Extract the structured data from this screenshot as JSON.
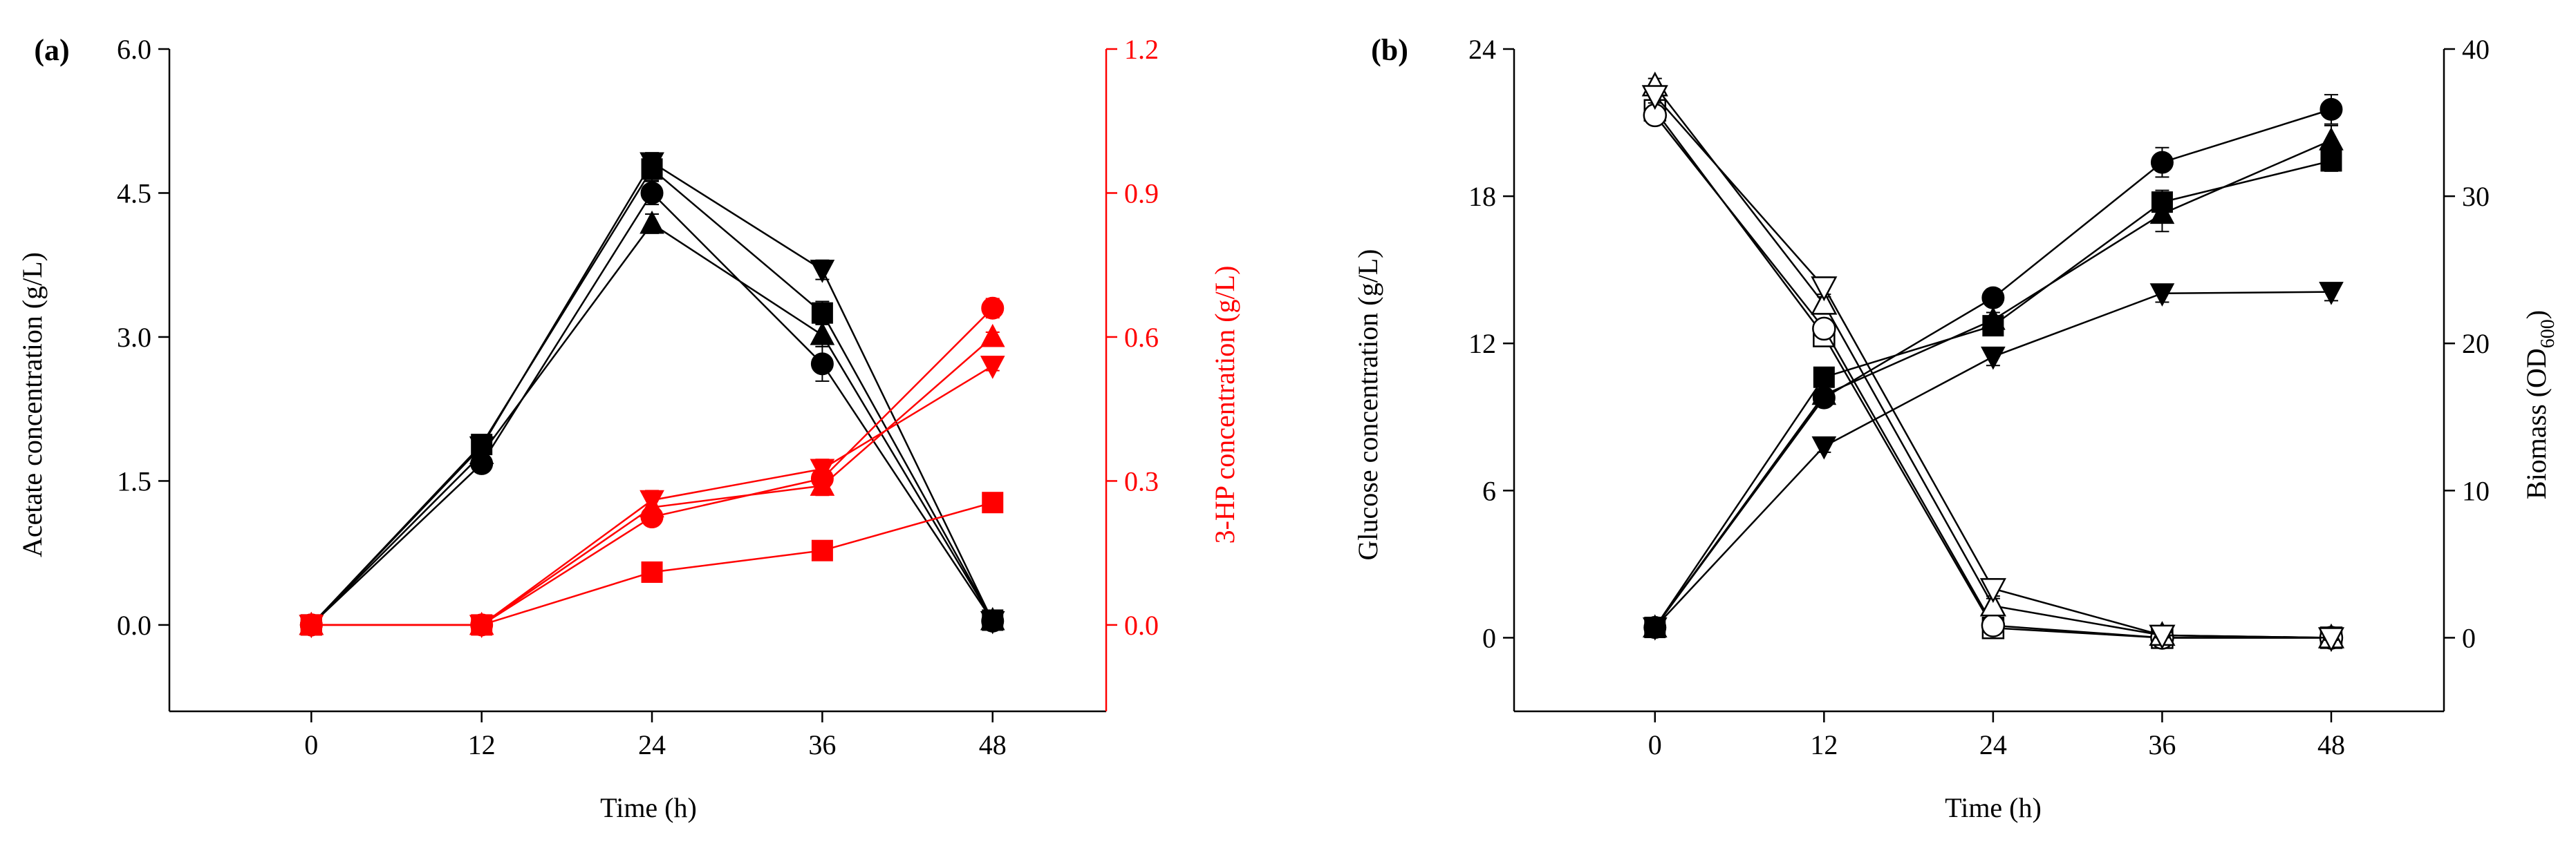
{
  "chart_data": [
    {
      "panel_label": "(a)",
      "type": "line",
      "x": [
        0,
        12,
        24,
        36,
        48
      ],
      "xlabel": "Time (h)",
      "xticks": [
        "0",
        "12",
        "24",
        "36",
        "48"
      ],
      "xlim": [
        -10,
        56
      ],
      "ylabel_left": "Acetate concentration (g/L)",
      "ylim_left": [
        -0.9,
        6.0
      ],
      "yticks_left": [
        "0.0",
        "1.5",
        "3.0",
        "4.5",
        "6.0"
      ],
      "ylabel_right": "3-HP concentration (g/L)",
      "ylim_right": [
        -0.18,
        1.2
      ],
      "yticks_right": [
        "0.0",
        "0.3",
        "0.6",
        "0.9",
        "1.2"
      ],
      "right_axis_color": "#ff0000",
      "series": [
        {
          "name": "acetate-square",
          "axis": "left",
          "marker": "square",
          "filled": true,
          "color": "#000000",
          "values": [
            0.0,
            1.88,
            4.75,
            3.25,
            0.05
          ],
          "errors": [
            0.05,
            0.08,
            0.12,
            0.12,
            0.03
          ]
        },
        {
          "name": "acetate-circle",
          "axis": "left",
          "marker": "circle",
          "filled": true,
          "color": "#000000",
          "values": [
            0.0,
            1.68,
            4.5,
            2.72,
            0.04
          ],
          "errors": [
            0.05,
            0.08,
            0.12,
            0.18,
            0.03
          ]
        },
        {
          "name": "acetate-triangle-up",
          "axis": "left",
          "marker": "triangle-up",
          "filled": true,
          "color": "#000000",
          "values": [
            0.0,
            1.78,
            4.18,
            3.02,
            0.05
          ],
          "errors": [
            0.05,
            0.08,
            0.1,
            0.12,
            0.03
          ]
        },
        {
          "name": "acetate-triangle-down",
          "axis": "left",
          "marker": "triangle-down",
          "filled": true,
          "color": "#000000",
          "values": [
            0.0,
            1.86,
            4.82,
            3.7,
            0.04
          ],
          "errors": [
            0.05,
            0.08,
            0.1,
            0.1,
            0.03
          ]
        },
        {
          "name": "3hp-square",
          "axis": "right",
          "marker": "square",
          "filled": true,
          "color": "#ff0000",
          "values": [
            0.0,
            0.0,
            0.11,
            0.155,
            0.255
          ],
          "errors": [
            0,
            0,
            0.005,
            0.005,
            0.005
          ]
        },
        {
          "name": "3hp-circle",
          "axis": "right",
          "marker": "circle",
          "filled": true,
          "color": "#ff0000",
          "values": [
            0.0,
            0.0,
            0.225,
            0.305,
            0.66
          ],
          "errors": [
            0,
            0,
            0.01,
            0.015,
            0.02
          ]
        },
        {
          "name": "3hp-triangle-up",
          "axis": "right",
          "marker": "triangle-up",
          "filled": true,
          "color": "#ff0000",
          "values": [
            0.0,
            0.0,
            0.245,
            0.29,
            0.6
          ],
          "errors": [
            0,
            0,
            0.02,
            0.02,
            0.01
          ]
        },
        {
          "name": "3hp-triangle-down",
          "axis": "right",
          "marker": "triangle-down",
          "filled": true,
          "color": "#ff0000",
          "values": [
            0.0,
            0.0,
            0.26,
            0.325,
            0.54
          ],
          "errors": [
            0,
            0,
            0.02,
            0.02,
            0.01
          ]
        }
      ]
    },
    {
      "panel_label": "(b)",
      "type": "line",
      "x": [
        0,
        12,
        24,
        36,
        48
      ],
      "xlabel": "Time (h)",
      "xticks": [
        "0",
        "12",
        "24",
        "36",
        "48"
      ],
      "xlim": [
        -10,
        56
      ],
      "ylabel_left": "Glucose concentration (g/L)",
      "ylim_left": [
        -3,
        24
      ],
      "yticks_left": [
        "0",
        "6",
        "12",
        "18",
        "24"
      ],
      "ylabel_right": "Biomass (OD",
      "ylabel_right_subscript": "600",
      "ylabel_right_suffix": ")",
      "ylim_right": [
        -5,
        40
      ],
      "yticks_right": [
        "0",
        "10",
        "20",
        "30",
        "40"
      ],
      "right_axis_color": "#000000",
      "series": [
        {
          "name": "biomass-square",
          "axis": "right",
          "marker": "square",
          "filled": true,
          "color": "#000000",
          "values": [
            0.7,
            17.7,
            21.2,
            29.6,
            32.4
          ],
          "errors": [
            0.3,
            0.4,
            0.6,
            0.8,
            0.7
          ]
        },
        {
          "name": "biomass-circle",
          "axis": "right",
          "marker": "circle",
          "filled": true,
          "color": "#000000",
          "values": [
            0.7,
            16.3,
            23.1,
            32.3,
            35.9
          ],
          "errors": [
            0.3,
            0.4,
            0.5,
            1.0,
            1.0
          ]
        },
        {
          "name": "biomass-triangle-up",
          "axis": "right",
          "marker": "triangle-up",
          "filled": true,
          "color": "#000000",
          "values": [
            0.7,
            16.5,
            21.6,
            28.8,
            33.8
          ],
          "errors": [
            0.3,
            0.4,
            0.5,
            1.2,
            1.0
          ]
        },
        {
          "name": "biomass-triangle-down",
          "axis": "right",
          "marker": "triangle-down",
          "filled": true,
          "color": "#000000",
          "values": [
            0.7,
            13.0,
            19.1,
            23.4,
            23.5
          ],
          "errors": [
            0.3,
            0.4,
            0.6,
            0.6,
            0.6
          ]
        },
        {
          "name": "glucose-square",
          "axis": "left",
          "marker": "square",
          "filled": false,
          "color": "#000000",
          "values": [
            21.5,
            12.3,
            0.4,
            0.0,
            0.0
          ],
          "errors": [
            0.3,
            0.3,
            0.2,
            0.1,
            0.1
          ]
        },
        {
          "name": "glucose-circle",
          "axis": "left",
          "marker": "circle",
          "filled": false,
          "color": "#000000",
          "values": [
            21.3,
            12.6,
            0.5,
            0.0,
            0.0
          ],
          "errors": [
            0.3,
            0.3,
            0.2,
            0.1,
            0.1
          ]
        },
        {
          "name": "glucose-triangle-up",
          "axis": "left",
          "marker": "triangle-up",
          "filled": false,
          "color": "#000000",
          "values": [
            22.5,
            13.6,
            1.3,
            0.1,
            0.0
          ],
          "errors": [
            0.3,
            0.4,
            0.4,
            0.1,
            0.1
          ]
        },
        {
          "name": "glucose-triangle-down",
          "axis": "left",
          "marker": "triangle-down",
          "filled": false,
          "color": "#000000",
          "values": [
            22.1,
            14.3,
            2.0,
            0.1,
            0.0
          ],
          "errors": [
            0.3,
            0.4,
            0.4,
            0.1,
            0.1
          ]
        }
      ]
    }
  ]
}
